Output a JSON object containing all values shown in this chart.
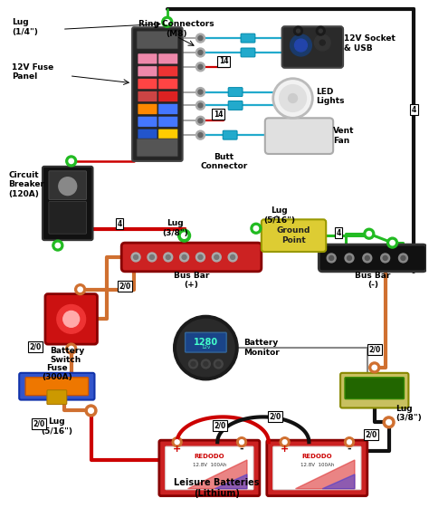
{
  "bg_color": "#ffffff",
  "wire_colors": {
    "red": "#cc0000",
    "black": "#111111",
    "green": "#22bb22",
    "cyan": "#22aacc",
    "orange": "#d07030",
    "gray": "#888888",
    "darkred": "#880000"
  },
  "labels": {
    "lug_14": "Lug\n(1/4\")",
    "fuse_panel": "12V Fuse\nPanel",
    "circuit_breaker": "Circuit\nBreaker\n(120A)",
    "ring_connectors": "Ring Connectors\n(M8)",
    "socket_usb": "12V Socket\n& USB",
    "led_lights": "LED\nLights",
    "vent_fan": "Vent\nFan",
    "lug_38a": "Lug\n(3/8\")",
    "butt_connector": "Butt\nConnector",
    "ground_point": "Ground\nPoint",
    "lug_516a": "Lug\n(5/16\")",
    "bus_bar_pos": "Bus Bar\n(+)",
    "bus_bar_neg": "Bus Bar\n(-)",
    "battery_switch": "Battery\nSwitch",
    "battery_monitor": "Battery\nMonitor",
    "fuse_300a": "Fuse\n(300A)",
    "lug_516b": "Lug\n(5/16\")",
    "lug_38b": "Lug\n(3/8\")",
    "leisure_batteries": "Leisure Batteries\n(Lithium)"
  }
}
